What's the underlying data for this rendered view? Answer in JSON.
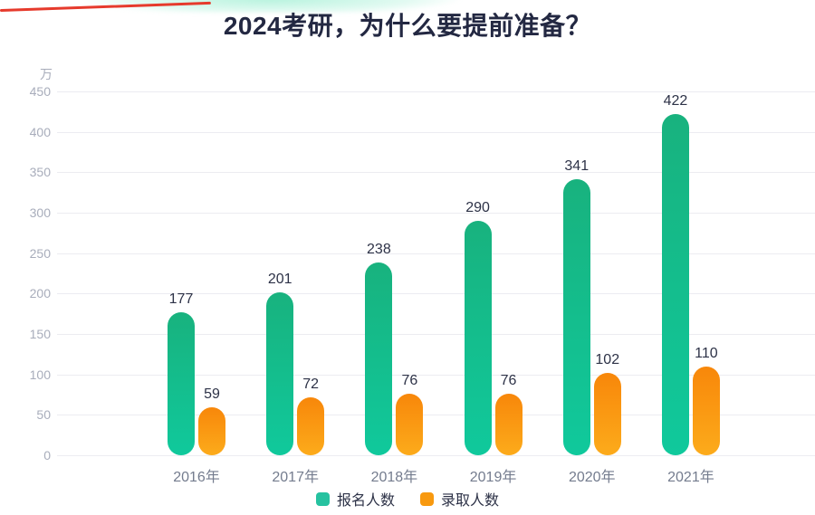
{
  "header": {
    "title": "2024考研，为什么要提前准备？"
  },
  "decor": {
    "red_line_color": "#e63a2c",
    "glow_color": "#8eeccb"
  },
  "chart_data": {
    "type": "bar",
    "title": "2024考研，为什么要提前准备？",
    "unit_label": "万",
    "categories": [
      "2016年",
      "2017年",
      "2018年",
      "2019年",
      "2020年",
      "2021年"
    ],
    "series": [
      {
        "name": "报名人数",
        "color_top": "#18b27e",
        "color_bottom": "#10c99c",
        "legend_color": "#26c2a0",
        "values": [
          177,
          201,
          238,
          290,
          341,
          422
        ]
      },
      {
        "name": "录取人数",
        "color_top": "#f8870a",
        "color_bottom": "#fcab1b",
        "legend_color": "#f8990f",
        "values": [
          59,
          72,
          76,
          76,
          102,
          110
        ]
      }
    ],
    "ylim": [
      0,
      450
    ],
    "yticks": [
      450,
      400,
      350,
      300,
      250,
      200,
      150,
      100,
      50,
      0
    ],
    "grid": true,
    "legend_position": "bottom",
    "value_labels": true
  }
}
